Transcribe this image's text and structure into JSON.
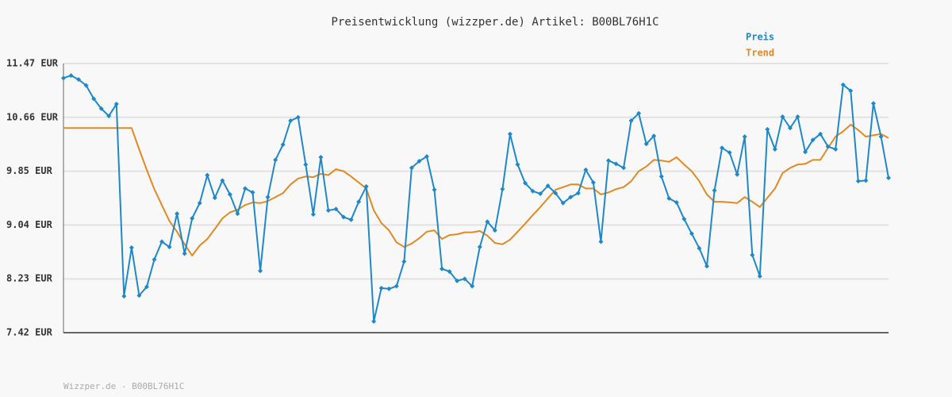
{
  "chart_data": {
    "type": "line",
    "title": "Preisentwicklung (wizzper.de) Artikel: B00BL76H1C",
    "footer": "Wizzper.de - B00BL76H1C",
    "ylim": [
      7.42,
      11.47
    ],
    "yticks": [
      {
        "value": 7.42,
        "label": "7.42 EUR"
      },
      {
        "value": 8.23,
        "label": "8.23 EUR"
      },
      {
        "value": 9.04,
        "label": "9.04 EUR"
      },
      {
        "value": 9.85,
        "label": "9.85 EUR"
      },
      {
        "value": 10.66,
        "label": "10.66 EUR"
      },
      {
        "value": 11.47,
        "label": "11.47 EUR"
      }
    ],
    "grid": true,
    "legend": "top-right",
    "series": [
      {
        "name": "Preis",
        "color": "#1f88c8",
        "marker": "diamond",
        "values": [
          11.25,
          11.29,
          11.23,
          11.14,
          10.94,
          10.79,
          10.68,
          10.86,
          7.97,
          8.7,
          7.98,
          8.11,
          8.52,
          8.79,
          8.71,
          9.21,
          8.61,
          9.14,
          9.37,
          9.79,
          9.45,
          9.71,
          9.5,
          9.21,
          9.59,
          9.53,
          8.35,
          9.46,
          10.02,
          10.25,
          10.61,
          10.66,
          9.95,
          9.2,
          10.06,
          9.26,
          9.28,
          9.16,
          9.12,
          9.39,
          9.62,
          7.59,
          8.09,
          8.08,
          8.12,
          8.49,
          9.9,
          10.0,
          10.07,
          9.57,
          8.38,
          8.34,
          8.2,
          8.23,
          8.12,
          8.71,
          9.09,
          8.96,
          9.58,
          10.41,
          9.95,
          9.67,
          9.55,
          9.51,
          9.63,
          9.52,
          9.37,
          9.46,
          9.52,
          9.87,
          9.68,
          8.79,
          10.01,
          9.96,
          9.9,
          10.61,
          10.72,
          10.26,
          10.38,
          9.77,
          9.44,
          9.38,
          9.13,
          8.91,
          8.69,
          8.42,
          9.56,
          10.2,
          10.13,
          9.8,
          10.37,
          8.59,
          8.27,
          10.48,
          10.18,
          10.67,
          10.5,
          10.67,
          10.14,
          10.32,
          10.41,
          10.22,
          10.18,
          11.15,
          11.06,
          9.7,
          9.71,
          10.87,
          10.37,
          9.75
        ]
      },
      {
        "name": "Trend",
        "color": "#e08a24",
        "values": [
          10.5,
          10.5,
          10.5,
          10.5,
          10.5,
          10.5,
          10.5,
          10.5,
          10.5,
          10.5,
          10.18,
          9.87,
          9.58,
          9.34,
          9.1,
          8.94,
          8.75,
          8.58,
          8.73,
          8.83,
          8.98,
          9.14,
          9.23,
          9.27,
          9.34,
          9.38,
          9.37,
          9.4,
          9.46,
          9.52,
          9.65,
          9.74,
          9.77,
          9.76,
          9.81,
          9.79,
          9.88,
          9.85,
          9.77,
          9.68,
          9.59,
          9.26,
          9.07,
          8.96,
          8.78,
          8.71,
          8.76,
          8.84,
          8.94,
          8.96,
          8.83,
          8.89,
          8.9,
          8.93,
          8.93,
          8.95,
          8.88,
          8.77,
          8.75,
          8.82,
          8.94,
          9.06,
          9.19,
          9.31,
          9.44,
          9.57,
          9.61,
          9.65,
          9.65,
          9.59,
          9.59,
          9.5,
          9.53,
          9.58,
          9.61,
          9.7,
          9.85,
          9.92,
          10.02,
          10.01,
          9.99,
          10.06,
          9.95,
          9.85,
          9.7,
          9.5,
          9.39,
          9.39,
          9.38,
          9.37,
          9.46,
          9.39,
          9.31,
          9.45,
          9.59,
          9.82,
          9.9,
          9.95,
          9.96,
          10.02,
          10.02,
          10.2,
          10.37,
          10.45,
          10.55,
          10.47,
          10.37,
          10.39,
          10.41,
          10.35
        ]
      }
    ]
  }
}
